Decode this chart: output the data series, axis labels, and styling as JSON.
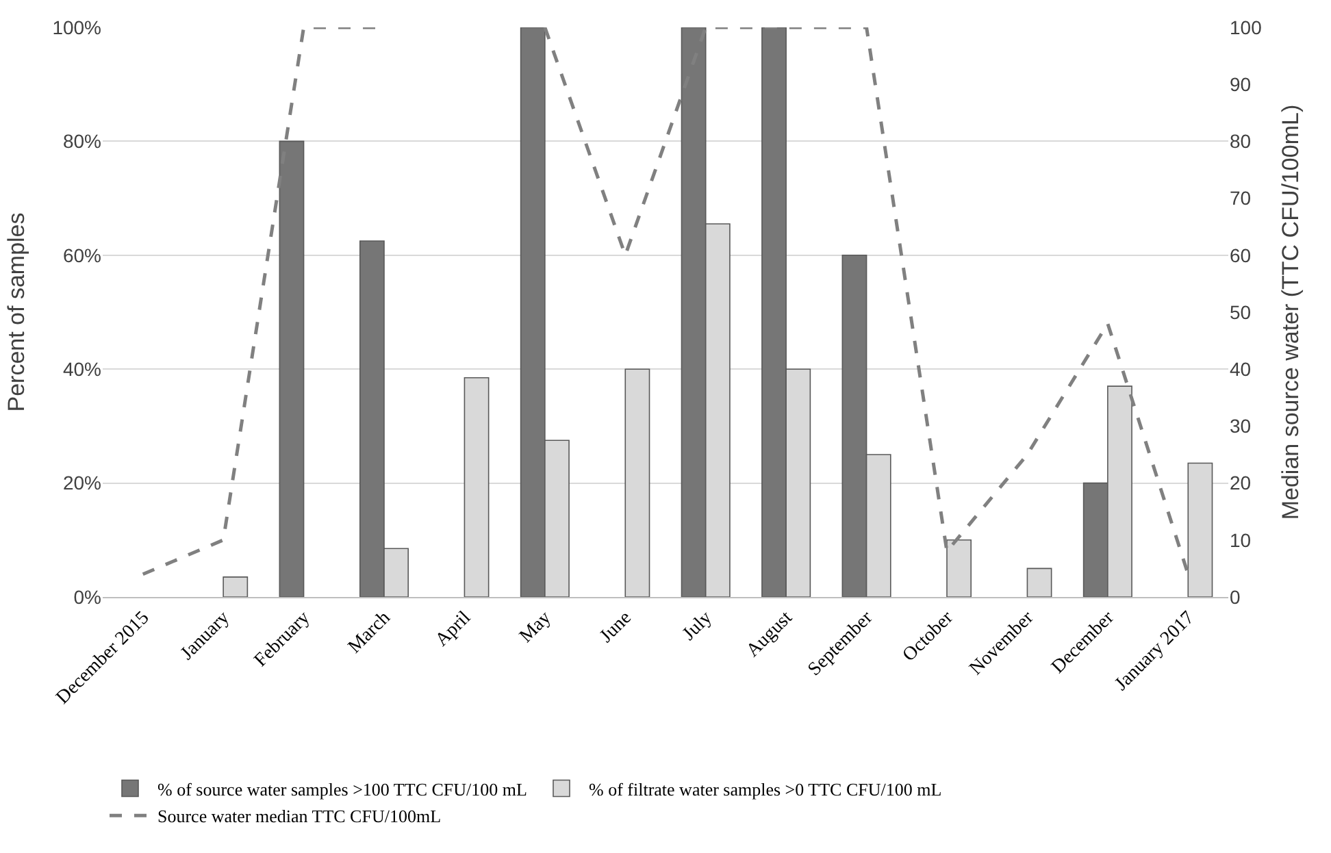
{
  "chart_data": {
    "type": "bar",
    "ylabel": "Percent of samples",
    "y2label": "Median source water (TTC CFU/100mL)",
    "categories": [
      "December 2015",
      "January",
      "February",
      "March",
      "April",
      "May",
      "June",
      "July",
      "August",
      "September",
      "October",
      "November",
      "December",
      "January 2017"
    ],
    "series": [
      {
        "name": "% of source water samples >100 TTC CFU/100 mL",
        "color": "#767676",
        "values": [
          null,
          null,
          80,
          62.5,
          null,
          100,
          null,
          100,
          100,
          60,
          null,
          null,
          20,
          null
        ]
      },
      {
        "name": "% of filtrate water samples >0 TTC CFU/100 mL",
        "color": "#d9d9d9",
        "values": [
          null,
          3.5,
          null,
          8.5,
          38.5,
          27.5,
          40,
          65.5,
          40,
          25,
          10,
          5,
          37,
          23.5
        ]
      },
      {
        "name": "Source water median TTC CFU/100mL",
        "type": "line",
        "axis": "y2",
        "color": "#808080",
        "line_style": "dashed",
        "marker": "none",
        "values": [
          4,
          10,
          100,
          100,
          null,
          100,
          60,
          100,
          100,
          100,
          8,
          25,
          48,
          4
        ]
      }
    ],
    "ylim": [
      0,
      100
    ],
    "yticks": [
      {
        "value": 0,
        "label": "0%"
      },
      {
        "value": 20,
        "label": "20%"
      },
      {
        "value": 40,
        "label": "40%"
      },
      {
        "value": 60,
        "label": "60%"
      },
      {
        "value": 80,
        "label": "80%"
      },
      {
        "value": 100,
        "label": "100%"
      }
    ],
    "y2lim": [
      0,
      100
    ],
    "y2ticks": [
      0,
      10,
      20,
      30,
      40,
      50,
      60,
      70,
      80,
      90,
      100
    ],
    "grid": "y",
    "legend": "bottom"
  }
}
